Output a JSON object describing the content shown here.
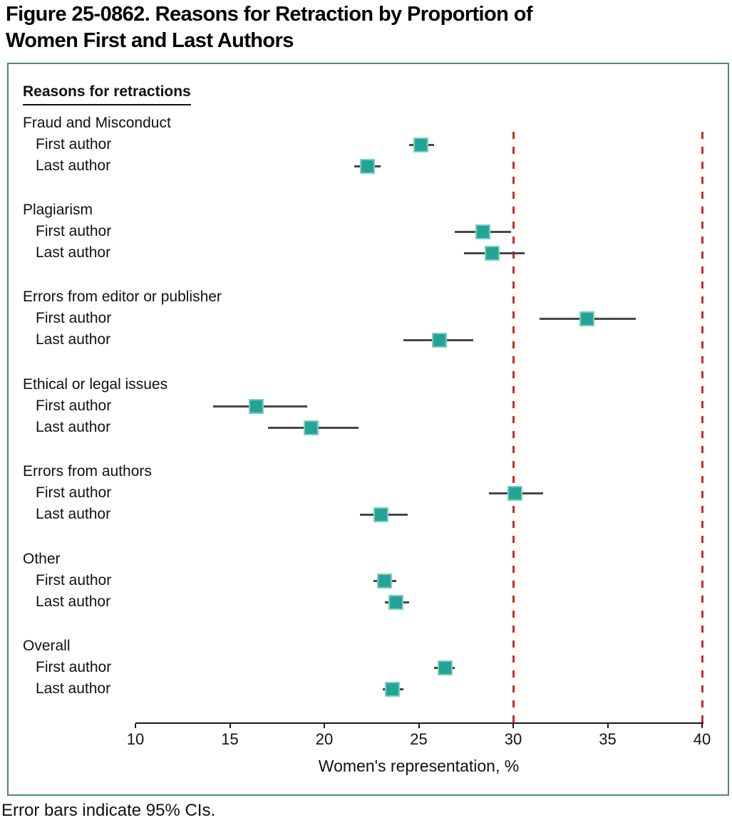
{
  "title_line1": "Figure 25-0862. Reasons for Retraction by Proportion of",
  "title_line2": "Women First and Last Authors",
  "footnote": "Error bars indicate 95% CIs.",
  "chart_data": {
    "type": "scatter",
    "subtype": "forest-plot-horizontal-error-bars",
    "column_header": "Reasons for retractions",
    "xlabel": "Women's representation, %",
    "xlim": [
      10,
      40
    ],
    "xticks": [
      10,
      15,
      20,
      25,
      30,
      35,
      40
    ],
    "grid": false,
    "legend": "none",
    "marker": {
      "shape": "square",
      "fill": "#23a596",
      "edge": "#7fcdc1"
    },
    "error_bar_color": "#474747",
    "reference_lines": [
      {
        "x": 30,
        "style": "dashed",
        "color": "#da2424"
      },
      {
        "x": 40,
        "style": "dashed",
        "color": "#da2424"
      }
    ],
    "groups": [
      {
        "label": "Fraud and Misconduct",
        "rows": [
          {
            "label": "First author",
            "value": 25.1,
            "ci_low": 24.5,
            "ci_high": 25.8
          },
          {
            "label": "Last author",
            "value": 22.3,
            "ci_low": 21.6,
            "ci_high": 23.0
          }
        ]
      },
      {
        "label": "Plagiarism",
        "rows": [
          {
            "label": "First author",
            "value": 28.4,
            "ci_low": 26.9,
            "ci_high": 29.9
          },
          {
            "label": "Last author",
            "value": 28.9,
            "ci_low": 27.4,
            "ci_high": 30.6
          }
        ]
      },
      {
        "label": "Errors from editor or publisher",
        "rows": [
          {
            "label": "First author",
            "value": 33.9,
            "ci_low": 31.4,
            "ci_high": 36.5
          },
          {
            "label": "Last author",
            "value": 26.1,
            "ci_low": 24.2,
            "ci_high": 27.9
          }
        ]
      },
      {
        "label": "Ethical or legal issues",
        "rows": [
          {
            "label": "First author",
            "value": 16.4,
            "ci_low": 14.1,
            "ci_high": 19.1
          },
          {
            "label": "Last author",
            "value": 19.3,
            "ci_low": 17.0,
            "ci_high": 21.8
          }
        ]
      },
      {
        "label": "Errors from authors",
        "rows": [
          {
            "label": "First author",
            "value": 30.1,
            "ci_low": 28.7,
            "ci_high": 31.6
          },
          {
            "label": "Last author",
            "value": 23.0,
            "ci_low": 21.9,
            "ci_high": 24.4
          }
        ]
      },
      {
        "label": "Other",
        "rows": [
          {
            "label": "First author",
            "value": 23.2,
            "ci_low": 22.6,
            "ci_high": 23.8
          },
          {
            "label": "Last author",
            "value": 23.8,
            "ci_low": 23.2,
            "ci_high": 24.5
          }
        ]
      },
      {
        "label": "Overall",
        "rows": [
          {
            "label": "First author",
            "value": 26.4,
            "ci_low": 25.8,
            "ci_high": 26.9
          },
          {
            "label": "Last author",
            "value": 23.6,
            "ci_low": 23.1,
            "ci_high": 24.2
          }
        ]
      }
    ]
  }
}
